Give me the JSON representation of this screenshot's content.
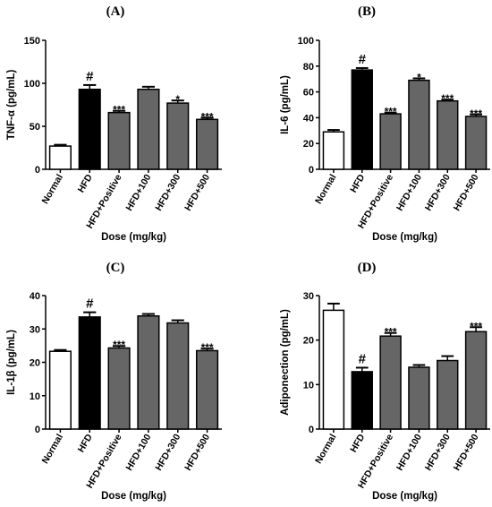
{
  "chart_data": [
    {
      "type": "bar",
      "panel": "(A)",
      "categories": [
        "Normal",
        "HFD",
        "HFD+Positive",
        "HFD+100",
        "HFD+300",
        "HFD+500"
      ],
      "values": [
        27,
        93,
        66,
        93,
        77,
        58
      ],
      "errors": [
        1.5,
        5,
        2,
        3,
        3,
        2
      ],
      "significance": [
        "",
        "#",
        "***",
        "",
        "*",
        "***"
      ],
      "fill_colors": [
        "#ffffff",
        "#000000",
        "#666666",
        "#666666",
        "#666666",
        "#666666"
      ],
      "ylabel": "TNF-α (pg/mL)",
      "xlabel": "Dose  (mg/kg)",
      "ylim": [
        0,
        150
      ],
      "yticks": [
        0,
        50,
        100,
        150
      ]
    },
    {
      "type": "bar",
      "panel": "(B)",
      "categories": [
        "Normal",
        "HFD",
        "HFD+Positive",
        "HFD+100",
        "HFD+300",
        "HFD+500"
      ],
      "values": [
        29,
        77,
        43,
        69,
        53,
        41
      ],
      "errors": [
        1.5,
        1.5,
        1,
        1.5,
        1,
        1.5
      ],
      "significance": [
        "",
        "#",
        "***",
        "*",
        "***",
        "***"
      ],
      "fill_colors": [
        "#ffffff",
        "#000000",
        "#666666",
        "#666666",
        "#666666",
        "#666666"
      ],
      "ylabel": "IL-6 (pg/mL)",
      "xlabel": "Dose  (mg/kg)",
      "ylim": [
        0,
        100
      ],
      "yticks": [
        0,
        20,
        40,
        60,
        80,
        100
      ]
    },
    {
      "type": "bar",
      "panel": "(C)",
      "categories": [
        "Normal",
        "HFD",
        "HFD+Positive",
        "HFD+100",
        "HFD+300",
        "HFD+500"
      ],
      "values": [
        23.3,
        33.6,
        24.3,
        33.9,
        31.8,
        23.5
      ],
      "errors": [
        0.4,
        1.4,
        0.6,
        0.6,
        0.8,
        0.6
      ],
      "significance": [
        "",
        "#",
        "***",
        "",
        "",
        "***"
      ],
      "fill_colors": [
        "#ffffff",
        "#000000",
        "#666666",
        "#666666",
        "#666666",
        "#666666"
      ],
      "ylabel": "IL-1β (pg/mL)",
      "xlabel": "Dose  (mg/kg)",
      "ylim": [
        0,
        40
      ],
      "yticks": [
        0,
        10,
        20,
        30,
        40
      ]
    },
    {
      "type": "bar",
      "panel": "(D)",
      "categories": [
        "Normal",
        "HFD",
        "HFD+Positive",
        "HFD+100",
        "HFD+300",
        "HFD+500"
      ],
      "values": [
        26.7,
        12.9,
        20.9,
        13.9,
        15.4,
        21.9
      ],
      "errors": [
        1.5,
        0.9,
        0.7,
        0.5,
        1,
        1
      ],
      "significance": [
        "",
        "#",
        "***",
        "",
        "",
        "***"
      ],
      "fill_colors": [
        "#ffffff",
        "#000000",
        "#666666",
        "#666666",
        "#666666",
        "#666666"
      ],
      "ylabel": "Adiponection (pg/mL)",
      "xlabel": "Dose  (mg/kg)",
      "ylim": [
        0,
        30
      ],
      "yticks": [
        0,
        10,
        20,
        30
      ]
    }
  ]
}
